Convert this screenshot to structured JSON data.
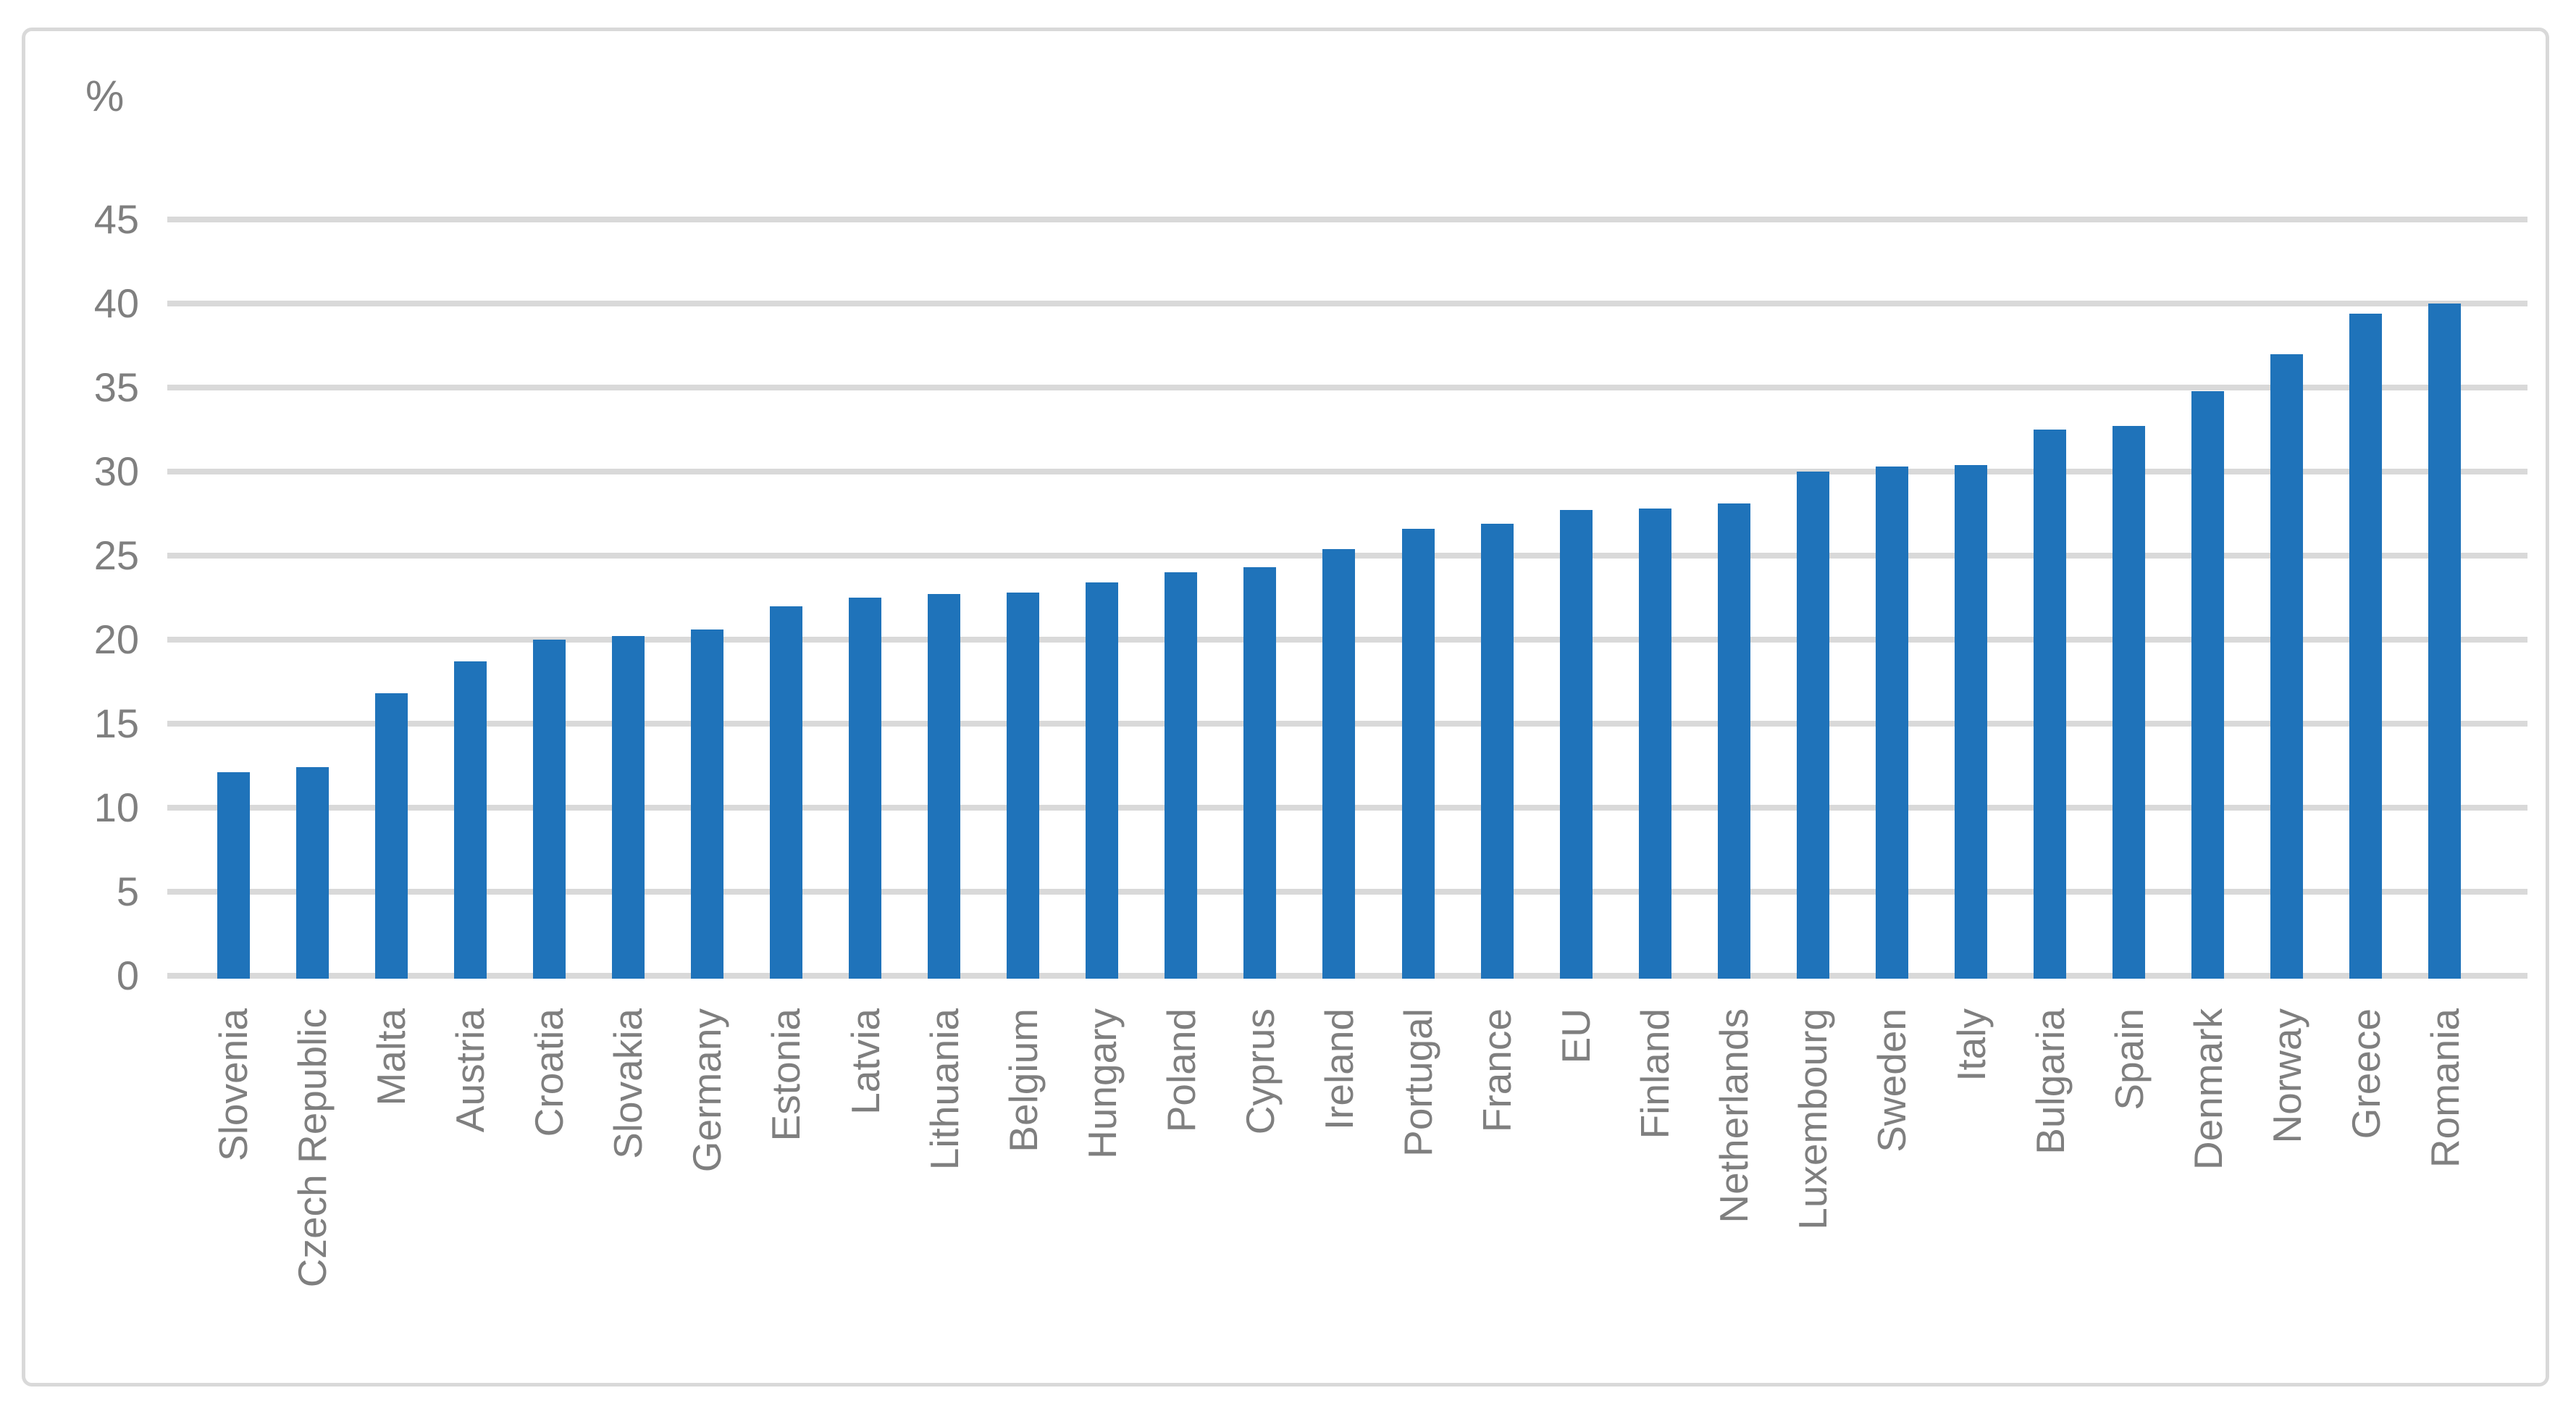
{
  "page": {
    "background_color": "#ffffff",
    "frame_border_color": "#d9d9d9"
  },
  "chart_data": {
    "type": "bar",
    "title": "",
    "ylabel": "%",
    "xlabel": "",
    "legend_position": "none",
    "grid": true,
    "ylim": [
      0,
      45
    ],
    "yticks": [
      0,
      5,
      10,
      15,
      20,
      25,
      30,
      35,
      40,
      45
    ],
    "categories": [
      "Slovenia",
      "Czech Republic",
      "Malta",
      "Austria",
      "Croatia",
      "Slovakia",
      "Germany",
      "Estonia",
      "Latvia",
      "Lithuania",
      "Belgium",
      "Hungary",
      "Poland",
      "Cyprus",
      "Ireland",
      "Portugal",
      "France",
      "EU",
      "Finland",
      "Netherlands",
      "Luxembourg",
      "Sweden",
      "Italy",
      "Bulgaria",
      "Spain",
      "Denmark",
      "Norway",
      "Greece",
      "Romania"
    ],
    "values": [
      12.1,
      12.4,
      16.8,
      18.7,
      20.0,
      20.2,
      20.6,
      22.0,
      22.5,
      22.7,
      22.8,
      23.4,
      24.0,
      24.3,
      25.4,
      26.6,
      26.9,
      27.7,
      27.8,
      28.1,
      30.0,
      30.3,
      30.4,
      32.5,
      32.7,
      34.8,
      37.0,
      39.4,
      40.0
    ],
    "bar_color": "#1f73ba",
    "gridline_color": "#d9d9d9",
    "axis_text_color": "#7f7f7f"
  }
}
